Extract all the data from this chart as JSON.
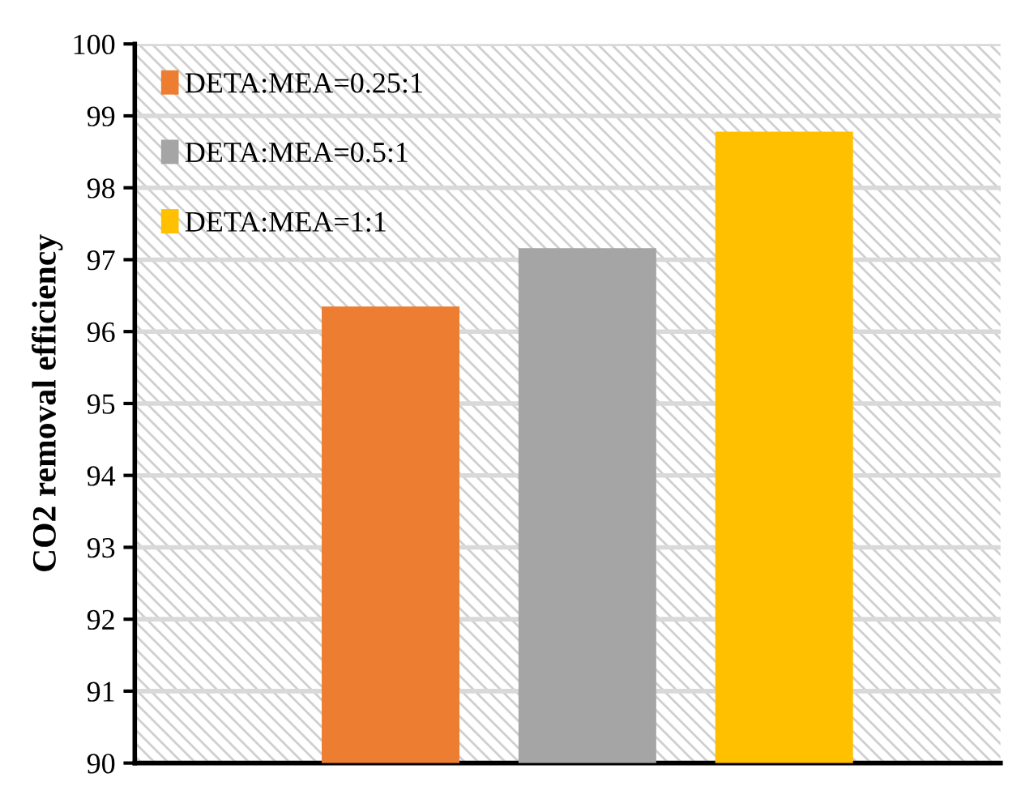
{
  "chart_data": {
    "type": "bar",
    "ylabel": "CO2 removal efficiency",
    "categories": [
      null,
      null,
      null
    ],
    "series": [
      {
        "name": "DETA:MEA=0.25:1",
        "color": "#ed7d31",
        "values": [
          96.35,
          null,
          null
        ]
      },
      {
        "name": "DETA:MEA=0.5:1",
        "color": "#a5a5a5",
        "values": [
          null,
          97.16,
          null
        ]
      },
      {
        "name": "DETA:MEA=1:1",
        "color": "#ffc000",
        "values": [
          null,
          null,
          98.78
        ]
      }
    ],
    "ylim": [
      90,
      100
    ],
    "yticks": [
      90,
      91,
      92,
      93,
      94,
      95,
      96,
      97,
      98,
      99,
      100
    ],
    "grid": "y",
    "legend": "top left",
    "tick_labels": "y"
  }
}
